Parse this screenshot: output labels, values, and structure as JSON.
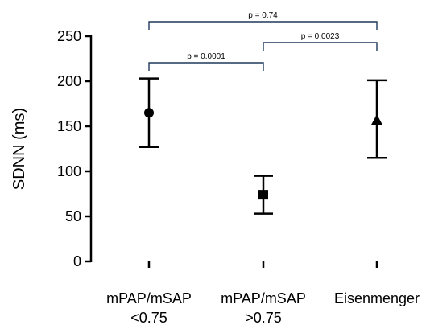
{
  "chart_data": {
    "type": "scatter",
    "ylabel": "SDNN (ms)",
    "xlabel": "",
    "ylim": [
      0,
      250
    ],
    "yticks": [
      0,
      50,
      100,
      150,
      200,
      250
    ],
    "grid": false,
    "categories": [
      [
        "mPAP/mSAP",
        "<0.75"
      ],
      [
        "mPAP/mSAP",
        ">0.75"
      ],
      [
        "Eisenmenger"
      ]
    ],
    "points": [
      {
        "mean": 165,
        "low": 127,
        "high": 203,
        "marker": "circle"
      },
      {
        "mean": 74,
        "low": 53,
        "high": 95,
        "marker": "square"
      },
      {
        "mean": 157,
        "low": 115,
        "high": 201,
        "marker": "triangle"
      }
    ],
    "comparisons": [
      {
        "from": 0,
        "to": 1,
        "label": "p = 0.0001",
        "level": 1
      },
      {
        "from": 1,
        "to": 2,
        "label": "p = 0.0023",
        "level": 2
      },
      {
        "from": 0,
        "to": 2,
        "label": "p = 0.74",
        "level": 3
      }
    ],
    "colors": {
      "axis": "#000000",
      "marker": "#000000",
      "bracket": "#1f3a5a"
    }
  }
}
